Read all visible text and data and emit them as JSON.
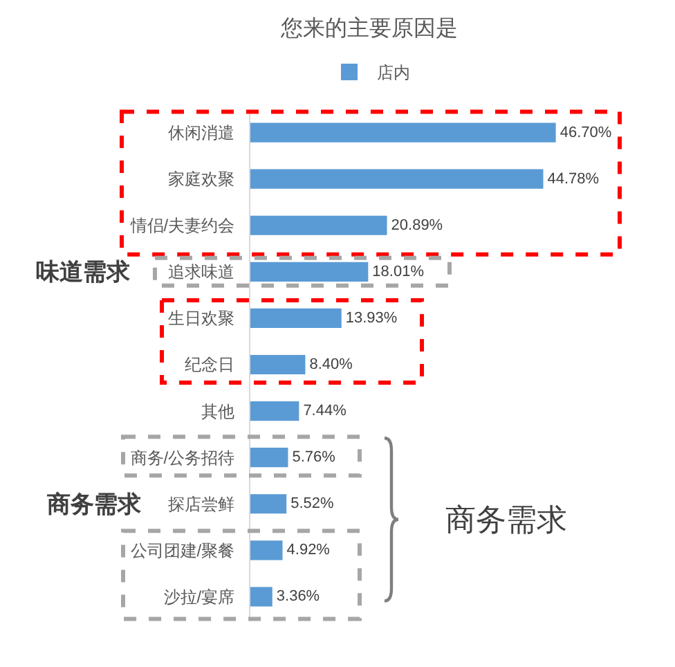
{
  "chart_data": {
    "type": "bar",
    "orientation": "horizontal",
    "title": "您来的主要原因是",
    "categories": [
      "休闲消遣",
      "家庭欢聚",
      "情侣/夫妻约会",
      "追求味道",
      "生日欢聚",
      "纪念日",
      "其他",
      "商务/公务招待",
      "探店尝鲜",
      "公司团建/聚餐",
      "沙拉/宴席"
    ],
    "series": [
      {
        "name": "店内",
        "color": "#5b9bd5",
        "values": [
          46.7,
          44.78,
          20.89,
          18.01,
          13.93,
          8.4,
          7.44,
          5.76,
          5.52,
          4.92,
          3.36
        ],
        "value_labels": [
          "46.70%",
          "44.78%",
          "20.89%",
          "18.01%",
          "13.93%",
          "8.40%",
          "7.44%",
          "5.76%",
          "5.52%",
          "4.92%",
          "3.36%"
        ]
      }
    ],
    "legend": "top",
    "grid": false,
    "tick_labels": "y",
    "annotations": [
      "味道需求",
      "商务需求",
      "商务需求"
    ]
  }
}
